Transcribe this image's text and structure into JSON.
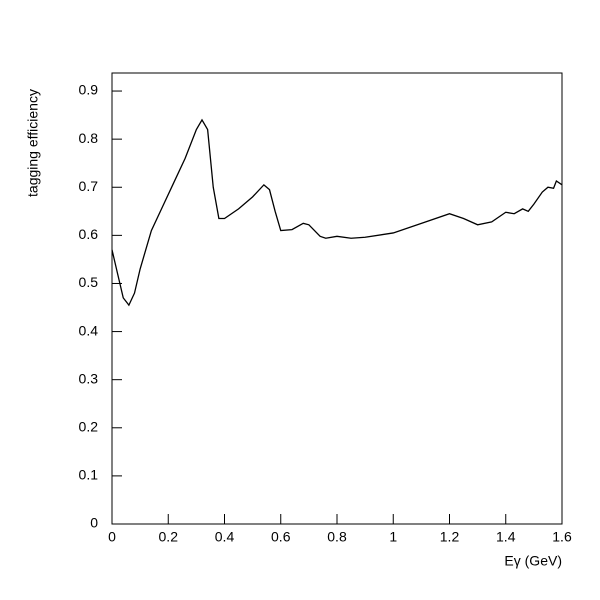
{
  "chart_data": {
    "type": "line",
    "xlabel": "Eγ (GeV)",
    "ylabel": "tagging efficiency",
    "x": [
      0,
      0.02,
      0.04,
      0.06,
      0.08,
      0.1,
      0.14,
      0.18,
      0.22,
      0.26,
      0.3,
      0.32,
      0.34,
      0.36,
      0.38,
      0.4,
      0.45,
      0.5,
      0.54,
      0.56,
      0.58,
      0.6,
      0.64,
      0.68,
      0.7,
      0.74,
      0.76,
      0.8,
      0.85,
      0.9,
      1.0,
      1.1,
      1.2,
      1.25,
      1.3,
      1.35,
      1.4,
      1.43,
      1.46,
      1.48,
      1.5,
      1.53,
      1.55,
      1.57,
      1.58,
      1.6
    ],
    "series": [
      {
        "color": "#000000",
        "values": [
          0.57,
          0.52,
          0.47,
          0.455,
          0.48,
          0.53,
          0.61,
          0.66,
          0.71,
          0.76,
          0.82,
          0.84,
          0.82,
          0.7,
          0.635,
          0.635,
          0.655,
          0.68,
          0.705,
          0.695,
          0.65,
          0.61,
          0.612,
          0.625,
          0.622,
          0.598,
          0.594,
          0.598,
          0.594,
          0.596,
          0.605,
          0.625,
          0.645,
          0.635,
          0.622,
          0.628,
          0.648,
          0.645,
          0.655,
          0.65,
          0.665,
          0.69,
          0.7,
          0.698,
          0.713,
          0.705
        ]
      }
    ],
    "xlim": [
      0,
      1.6
    ],
    "xticks": [
      0,
      0.2,
      0.4,
      0.6,
      0.8,
      1,
      1.2,
      1.4,
      1.6
    ],
    "ylim": [
      0,
      0.9375
    ],
    "yticks": [
      0,
      0.1,
      0.2,
      0.3,
      0.4,
      0.5,
      0.6,
      0.7,
      0.8,
      0.9
    ]
  }
}
